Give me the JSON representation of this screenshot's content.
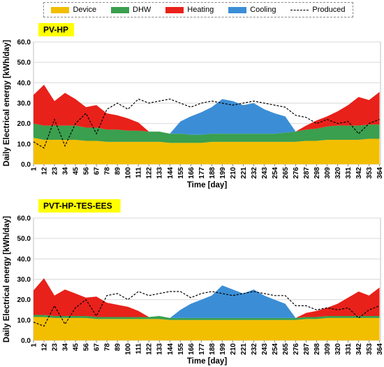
{
  "legend": {
    "items": [
      {
        "key": "device",
        "label": "Device",
        "color": "#f2be00",
        "style": "fill"
      },
      {
        "key": "dhw",
        "label": "DHW",
        "color": "#3a9f4e",
        "style": "fill"
      },
      {
        "key": "heating",
        "label": "Heating",
        "color": "#e8211a",
        "style": "fill"
      },
      {
        "key": "cooling",
        "label": "Cooling",
        "color": "#3b8ed6",
        "style": "fill"
      },
      {
        "key": "produced",
        "label": "Produced",
        "color": "#000000",
        "style": "dashed-line"
      }
    ]
  },
  "chart_data": [
    {
      "type": "area",
      "stacked": true,
      "title": "PV-HP",
      "title_box_color": "#ffff00",
      "xlabel": "Time  [day]",
      "ylabel": "Daily Electrical energy  [kWh/day]",
      "ylim": [
        0,
        60
      ],
      "yticks": [
        "0.0",
        "10.0",
        "20.0",
        "30.0",
        "40.0",
        "50.0",
        "60.0"
      ],
      "xlim": [
        1,
        365
      ],
      "xticks": [
        1,
        12,
        23,
        34,
        45,
        56,
        67,
        78,
        89,
        100,
        111,
        122,
        133,
        144,
        155,
        166,
        177,
        188,
        199,
        210,
        221,
        232,
        243,
        254,
        265,
        276,
        287,
        298,
        309,
        320,
        331,
        342,
        353,
        364
      ],
      "grid": true,
      "x": [
        1,
        12,
        23,
        34,
        45,
        56,
        67,
        78,
        89,
        100,
        111,
        122,
        133,
        144,
        155,
        166,
        177,
        188,
        199,
        210,
        221,
        232,
        243,
        254,
        265,
        276,
        287,
        298,
        309,
        320,
        331,
        342,
        353,
        364
      ],
      "series": [
        {
          "name": "Device",
          "color": "#f2be00",
          "values": [
            13,
            12,
            12,
            12,
            12,
            11.5,
            11.5,
            11,
            11,
            11,
            11,
            11,
            11,
            10.5,
            10.5,
            10.5,
            10.5,
            11,
            11,
            11,
            11,
            11,
            11,
            11,
            11,
            11,
            11.5,
            11.5,
            12,
            12,
            12,
            12,
            12.5,
            12.5
          ]
        },
        {
          "name": "DHW",
          "color": "#3a9f4e",
          "values": [
            7,
            7,
            7,
            7,
            7,
            6.5,
            6.5,
            6,
            6,
            5.5,
            5.5,
            5,
            5,
            4.5,
            4.5,
            4,
            4,
            4,
            4,
            4,
            4,
            4,
            4,
            4,
            4.5,
            5,
            5.5,
            6,
            6.5,
            7,
            7,
            7,
            7,
            7
          ]
        },
        {
          "name": "Heating",
          "color": "#e8211a",
          "values": [
            14,
            20,
            12,
            16,
            13,
            10,
            11,
            8,
            7,
            6,
            4,
            0,
            0,
            0,
            0,
            0,
            0,
            0,
            0,
            0,
            0,
            0,
            0,
            0,
            0,
            0,
            2,
            4,
            5,
            7,
            10,
            14,
            12,
            16
          ]
        },
        {
          "name": "Cooling",
          "color": "#3b8ed6",
          "values": [
            0,
            0,
            0,
            0,
            0,
            0,
            0,
            0,
            0,
            0,
            0,
            0,
            0,
            0,
            6,
            9,
            11,
            13,
            17,
            16,
            14,
            15,
            12,
            10,
            8,
            0,
            0,
            0,
            0,
            0,
            0,
            0,
            0,
            0
          ]
        },
        {
          "name": "Produced",
          "color": "#000000",
          "line_style": "dashed",
          "values": [
            11,
            8,
            22,
            9,
            20,
            25,
            15,
            27,
            30,
            27,
            32,
            30,
            31,
            32,
            30,
            28,
            30,
            31,
            30,
            29,
            30,
            31,
            30,
            29,
            28,
            24,
            23,
            20,
            22,
            20,
            21,
            15,
            20,
            22
          ]
        }
      ]
    },
    {
      "type": "area",
      "stacked": true,
      "title": "PVT-HP-TES-EES",
      "title_box_color": "#ffff00",
      "xlabel": "Time  [day]",
      "ylabel": "Daily Electrical energy  [kWh/day]",
      "ylim": [
        0,
        60
      ],
      "yticks": [
        "0.0",
        "10.0",
        "20.0",
        "30.0",
        "40.0",
        "50.0",
        "60.0"
      ],
      "xlim": [
        1,
        365
      ],
      "xticks": [
        1,
        12,
        23,
        34,
        45,
        56,
        67,
        78,
        89,
        100,
        111,
        122,
        133,
        144,
        155,
        166,
        177,
        188,
        199,
        210,
        221,
        232,
        243,
        254,
        265,
        276,
        287,
        298,
        309,
        320,
        331,
        342,
        353,
        364
      ],
      "grid": true,
      "x": [
        1,
        12,
        23,
        34,
        45,
        56,
        67,
        78,
        89,
        100,
        111,
        122,
        133,
        144,
        155,
        166,
        177,
        188,
        199,
        210,
        221,
        232,
        243,
        254,
        265,
        276,
        287,
        298,
        309,
        320,
        331,
        342,
        353,
        364
      ],
      "series": [
        {
          "name": "Device",
          "color": "#f2be00",
          "values": [
            11.5,
            11.5,
            11,
            11,
            11,
            11,
            10.5,
            10.5,
            10.5,
            10.5,
            10.5,
            10.5,
            10.5,
            10,
            10,
            10,
            10,
            10,
            10,
            10,
            10,
            10,
            10,
            10,
            10,
            10,
            10.5,
            10.5,
            11,
            11,
            11,
            11,
            11,
            11
          ]
        },
        {
          "name": "DHW",
          "color": "#3a9f4e",
          "values": [
            1,
            1,
            1,
            1,
            1,
            1,
            1,
            1,
            1,
            1,
            1,
            1,
            1.5,
            1,
            1,
            1,
            1,
            1,
            1,
            1,
            1,
            1,
            1,
            1,
            1,
            1,
            1,
            1,
            1,
            1,
            1,
            1,
            1,
            1
          ]
        },
        {
          "name": "Heating",
          "color": "#e8211a",
          "values": [
            12,
            18,
            10,
            13,
            11,
            9,
            10,
            7,
            6,
            5,
            3,
            0,
            0,
            0,
            0,
            0,
            0,
            0,
            0,
            0,
            0,
            0,
            0,
            0,
            0,
            0,
            2,
            3,
            4,
            6,
            9,
            12,
            10,
            14
          ]
        },
        {
          "name": "Cooling",
          "color": "#3b8ed6",
          "values": [
            0,
            0,
            0,
            0,
            0,
            0,
            0,
            0,
            0,
            0,
            0,
            0,
            0,
            0,
            4,
            7,
            9,
            11,
            16,
            14,
            12,
            14,
            11,
            9,
            7,
            0,
            0,
            0,
            0,
            0,
            0,
            0,
            0,
            0
          ]
        },
        {
          "name": "Produced",
          "color": "#000000",
          "line_style": "dashed",
          "values": [
            9,
            7,
            17,
            8,
            16,
            20,
            12,
            22,
            23,
            20,
            24,
            22,
            23,
            24,
            24,
            21,
            23,
            24,
            23,
            22,
            23,
            24,
            23,
            22,
            22,
            17,
            17,
            15,
            16,
            15,
            16,
            11,
            15,
            17
          ]
        }
      ]
    }
  ]
}
